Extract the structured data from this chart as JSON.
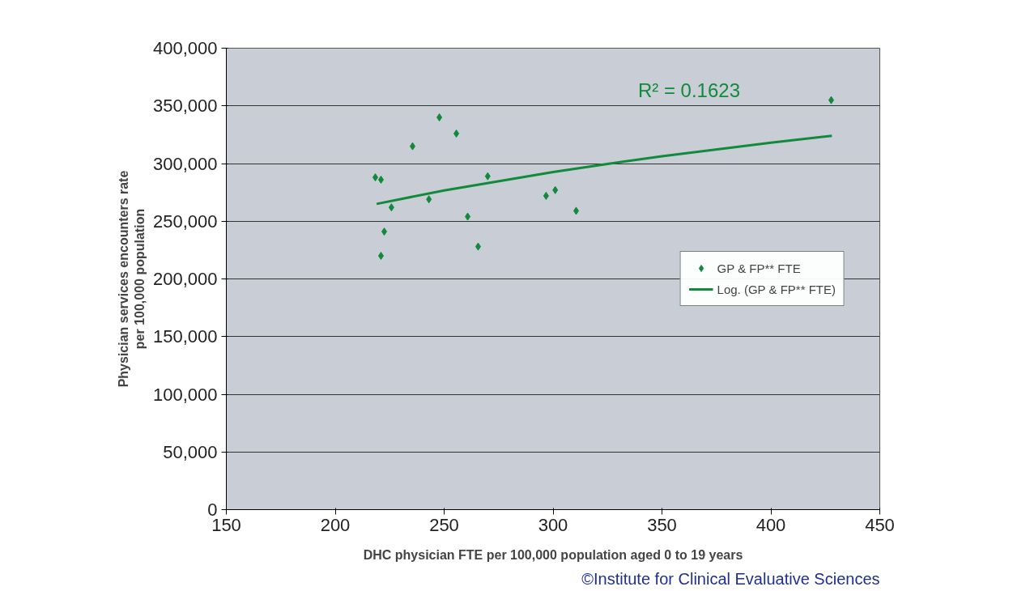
{
  "chart_data": {
    "type": "scatter",
    "xlabel": "DHC physician FTE per 100,000 population aged 0 to 19 years",
    "ylabel": "Physician services encounters rate\nper 100,000 population",
    "xlim": [
      150,
      450
    ],
    "xticks": [
      150,
      200,
      250,
      300,
      350,
      400,
      450
    ],
    "ylim": [
      0,
      400000
    ],
    "yticks": [
      {
        "value": 0,
        "label": "0"
      },
      {
        "value": 50000,
        "label": "50,000"
      },
      {
        "value": 100000,
        "label": "100,000"
      },
      {
        "value": 150000,
        "label": "150,000"
      },
      {
        "value": 200000,
        "label": "200,000"
      },
      {
        "value": 250000,
        "label": "250,000"
      },
      {
        "value": 300000,
        "label": "300,000"
      },
      {
        "value": 350000,
        "label": "350,000"
      },
      {
        "value": 400000,
        "label": "400,000"
      }
    ],
    "grid": "y",
    "legend": "right",
    "series": [
      {
        "name": "GP & FP** FTE",
        "marker": "diamond",
        "color": "#118a3c",
        "x": [
          218.4,
          221,
          221,
          222.5,
          225.8,
          235.5,
          243,
          247.8,
          255.6,
          260.8,
          265.6,
          270,
          296.8,
          301,
          310.6,
          427.7
        ],
        "values": [
          288000,
          286000,
          220000,
          241000,
          262000,
          315000,
          269000,
          340000,
          326000,
          254000,
          228000,
          289000,
          272000,
          277000,
          259000,
          355000
        ]
      },
      {
        "name": "Log. (GP & FP** FTE)",
        "type": "line",
        "marker": "none",
        "color": "#118a3c",
        "x": [
          219,
          250,
          300,
          325,
          350,
          400,
          428
        ],
        "values": [
          265000,
          276700,
          292700,
          299700,
          306300,
          318000,
          324000
        ]
      }
    ],
    "annotations": [
      "R² = 0.1623",
      "©Institute for Clinical Evaluative Sciences"
    ]
  }
}
